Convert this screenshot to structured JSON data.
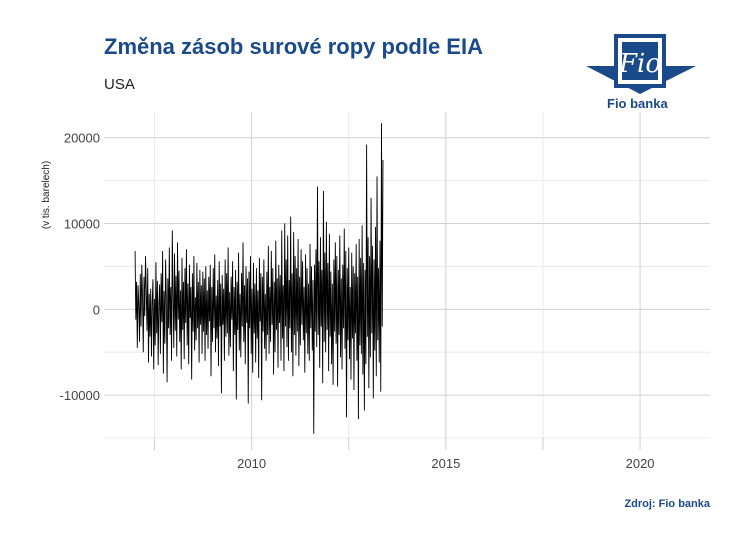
{
  "header": {
    "title": "Změna zásob surové ropy podle EIA",
    "subtitle": "USA"
  },
  "logo": {
    "name": "Fio",
    "caption": "Fio banka",
    "color": "#1a4a8a"
  },
  "footer": {
    "source": "Zdroj: Fio banka"
  },
  "chart_data": {
    "type": "line",
    "title": "Změna zásob surové ropy podle EIA",
    "subtitle": "USA",
    "xlabel": "",
    "ylabel": "(v tis. barelech)",
    "x_ticks": [
      "2010",
      "2015",
      "2020"
    ],
    "y_ticks": [
      "-10000",
      "0",
      "10000",
      "20000"
    ],
    "xlim": [
      2006.2,
      2021.8
    ],
    "ylim": [
      -15000,
      23000
    ],
    "grid": true,
    "line_color": "#000000",
    "x_start": 2007.0,
    "x_step_weeks": 1,
    "series": [
      {
        "values": [
          6800,
          -1200,
          3200,
          -4500,
          2800,
          500,
          -3800,
          4100,
          -2000,
          5200,
          1500,
          -5000,
          3800,
          -800,
          6200,
          2300,
          -2500,
          4800,
          -6200,
          1800,
          -3200,
          2400,
          -5500,
          800,
          3500,
          -7000,
          1200,
          -4200,
          5500,
          -2800,
          3300,
          -6500,
          800,
          2900,
          -5200,
          4200,
          -1500,
          6800,
          -7500,
          2100,
          -4000,
          5800,
          1200,
          -8500,
          3600,
          -2200,
          7200,
          -3000,
          2600,
          -6000,
          9200,
          1800,
          -4500,
          6500,
          -2500,
          3900,
          -5500,
          7800,
          -1200,
          4500,
          -3800,
          2200,
          -7000,
          6000,
          -2400,
          3200,
          -5800,
          4800,
          -1600,
          7000,
          -4200,
          3000,
          -6400,
          5200,
          -1000,
          2600,
          -8200,
          4200,
          -2600,
          6200,
          -4800,
          1400,
          -3600,
          5400,
          -2200,
          3200,
          -6200,
          4600,
          -1800,
          2800,
          -5200,
          4400,
          -2600,
          3600,
          -6000,
          5000,
          -3000,
          2200,
          -4600,
          3800,
          -1400,
          5200,
          -7800,
          2600,
          -3800,
          4800,
          -2200,
          6400,
          -5000,
          1600,
          -3400,
          3400,
          -6600,
          5600,
          -2000,
          3000,
          -9800,
          4000,
          -1800,
          2400,
          -6000,
          5800,
          -3200,
          4200,
          -2800,
          7200,
          -5400,
          2000,
          -4400,
          3800,
          -1200,
          5600,
          -7200,
          2600,
          -3000,
          4600,
          -10500,
          3200,
          -2400,
          6600,
          -4800,
          1800,
          -5600,
          4200,
          -2000,
          7800,
          -3800,
          2800,
          -6400,
          5000,
          -1600,
          3600,
          -11000,
          4400,
          -2200,
          6200,
          -5200,
          2400,
          -7400,
          5400,
          -2800,
          3000,
          -6200,
          4800,
          -3400,
          2200,
          -8000,
          6000,
          -1400,
          4200,
          -10600,
          3800,
          -2600,
          5800,
          -4600,
          1800,
          -6000,
          4400,
          -3000,
          7400,
          -5200,
          2600,
          -3800,
          6800,
          -1800,
          4800,
          -7600,
          3200,
          -5000,
          8000,
          -2400,
          3600,
          -6800,
          5200,
          -1600,
          4000,
          -6000,
          9200,
          -3400,
          2800,
          -7200,
          10000,
          -2000,
          5800,
          -4400,
          8600,
          -6000,
          3400,
          -2200,
          10800,
          -5000,
          4200,
          -7800,
          9000,
          -3000,
          6200,
          -5400,
          4800,
          -2600,
          8200,
          -6600,
          3800,
          -4200,
          7000,
          -1800,
          5600,
          -3600,
          2600,
          -7400,
          6400,
          -2800,
          4800,
          -5200,
          3000,
          -6000,
          7600,
          -2200,
          5000,
          -4800,
          3400,
          -14500,
          5200,
          -2600,
          7000,
          -4400,
          14300,
          -3000,
          5600,
          -6800,
          8400,
          -2000,
          4600,
          -8600,
          13800,
          -3800,
          6600,
          -5000,
          10200,
          -2400,
          5400,
          -7200,
          8800,
          -3200,
          4400,
          -6400,
          3000,
          -8800,
          5800,
          -2600,
          7800,
          -4000,
          6200,
          -9000,
          4600,
          -3000,
          8600,
          -5600,
          3600,
          -7000,
          5200,
          -2200,
          9400,
          -4600,
          6800,
          -12600,
          4800,
          -3600,
          7200,
          -5800,
          2600,
          -8200,
          6600,
          -3400,
          5000,
          -9400,
          4200,
          -2800,
          7600,
          -6000,
          3800,
          -12800,
          8200,
          -4200,
          6000,
          -5200,
          9800,
          -7600,
          5400,
          -11800,
          4600,
          -6400,
          19200,
          -3200,
          8400,
          -9200,
          6200,
          -5600,
          13000,
          -2800,
          7400,
          -10400,
          5800,
          -4800,
          9600,
          -7800,
          15500,
          -3600,
          4800,
          -6200,
          8000,
          -9600,
          21700,
          -2000,
          17400
        ]
      }
    ]
  }
}
